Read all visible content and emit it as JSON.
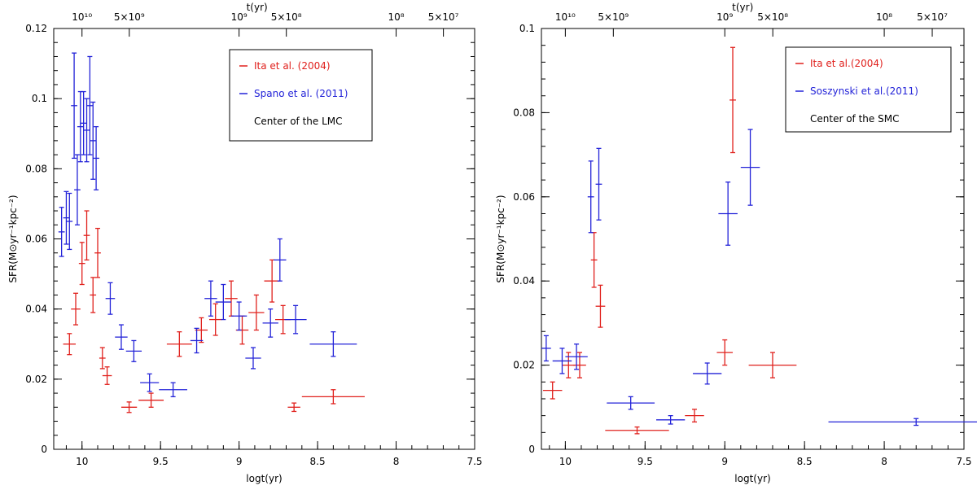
{
  "chart_data": [
    {
      "type": "scatter",
      "xlabel": "logt(yr)",
      "ylabel": "SFR(M⊙yr⁻¹kpc⁻²)",
      "top_axis_label": "t(yr)",
      "top_ticks": [
        {
          "label": "10¹⁰",
          "logt": 10.0
        },
        {
          "label": "5×10⁹",
          "logt": 9.699
        },
        {
          "label": "10⁹",
          "logt": 9.0
        },
        {
          "label": "5×10⁸",
          "logt": 8.699
        },
        {
          "label": "10⁸",
          "logt": 8.0
        },
        {
          "label": "5×10⁷",
          "logt": 7.699
        }
      ],
      "xlim": [
        10.18,
        7.5
      ],
      "ylim": [
        0,
        0.12
      ],
      "x_ticks": [
        10,
        9.5,
        9,
        8.5,
        8,
        7.5
      ],
      "x_tick_labels": [
        "10",
        "9.5",
        "9",
        "8.5",
        "8",
        "7.5"
      ],
      "y_ticks": [
        0,
        0.02,
        0.04,
        0.06,
        0.08,
        0.1,
        0.12
      ],
      "y_tick_labels": [
        "0",
        "0.02",
        "0.04",
        "0.06",
        "0.08",
        "0.1",
        "0.12"
      ],
      "legend_position": "top-right",
      "legend_note": "Center of the LMC",
      "series": [
        {
          "name": "Ita et al. (2004)",
          "color": "#e0201c",
          "points": [
            {
              "x": 10.08,
              "y": 0.03,
              "xerr": 0.04,
              "yerr": 0.003
            },
            {
              "x": 10.04,
              "y": 0.04,
              "xerr": 0.03,
              "yerr": 0.0045
            },
            {
              "x": 10.0,
              "y": 0.053,
              "xerr": 0.02,
              "yerr": 0.006
            },
            {
              "x": 9.97,
              "y": 0.061,
              "xerr": 0.02,
              "yerr": 0.007
            },
            {
              "x": 9.93,
              "y": 0.044,
              "xerr": 0.02,
              "yerr": 0.005
            },
            {
              "x": 9.9,
              "y": 0.056,
              "xerr": 0.02,
              "yerr": 0.007
            },
            {
              "x": 9.87,
              "y": 0.026,
              "xerr": 0.02,
              "yerr": 0.003
            },
            {
              "x": 9.84,
              "y": 0.021,
              "xerr": 0.03,
              "yerr": 0.0025
            },
            {
              "x": 9.7,
              "y": 0.012,
              "xerr": 0.05,
              "yerr": 0.0015
            },
            {
              "x": 9.56,
              "y": 0.014,
              "xerr": 0.08,
              "yerr": 0.002
            },
            {
              "x": 9.38,
              "y": 0.03,
              "xerr": 0.08,
              "yerr": 0.0035
            },
            {
              "x": 9.24,
              "y": 0.034,
              "xerr": 0.04,
              "yerr": 0.0035
            },
            {
              "x": 9.15,
              "y": 0.037,
              "xerr": 0.04,
              "yerr": 0.0045
            },
            {
              "x": 9.05,
              "y": 0.043,
              "xerr": 0.04,
              "yerr": 0.005
            },
            {
              "x": 8.98,
              "y": 0.034,
              "xerr": 0.04,
              "yerr": 0.004
            },
            {
              "x": 8.89,
              "y": 0.039,
              "xerr": 0.05,
              "yerr": 0.005
            },
            {
              "x": 8.79,
              "y": 0.048,
              "xerr": 0.05,
              "yerr": 0.006
            },
            {
              "x": 8.72,
              "y": 0.037,
              "xerr": 0.05,
              "yerr": 0.004
            },
            {
              "x": 8.65,
              "y": 0.012,
              "xerr": 0.04,
              "yerr": 0.0012
            },
            {
              "x": 8.4,
              "y": 0.015,
              "xerr": 0.2,
              "yerr": 0.002
            }
          ]
        },
        {
          "name": "Spano et al. (2011)",
          "color": "#2323d8",
          "points": [
            {
              "x": 10.13,
              "y": 0.062,
              "xerr": 0.02,
              "yerr": 0.007
            },
            {
              "x": 10.1,
              "y": 0.066,
              "xerr": 0.02,
              "yerr": 0.0075
            },
            {
              "x": 10.08,
              "y": 0.065,
              "xerr": 0.02,
              "yerr": 0.008
            },
            {
              "x": 10.05,
              "y": 0.098,
              "xerr": 0.02,
              "yerr": 0.015
            },
            {
              "x": 10.03,
              "y": 0.074,
              "xerr": 0.02,
              "yerr": 0.01
            },
            {
              "x": 10.01,
              "y": 0.092,
              "xerr": 0.02,
              "yerr": 0.01
            },
            {
              "x": 9.99,
              "y": 0.093,
              "xerr": 0.02,
              "yerr": 0.009
            },
            {
              "x": 9.97,
              "y": 0.091,
              "xerr": 0.02,
              "yerr": 0.009
            },
            {
              "x": 9.95,
              "y": 0.098,
              "xerr": 0.02,
              "yerr": 0.014
            },
            {
              "x": 9.93,
              "y": 0.088,
              "xerr": 0.02,
              "yerr": 0.011
            },
            {
              "x": 9.91,
              "y": 0.083,
              "xerr": 0.02,
              "yerr": 0.009
            },
            {
              "x": 9.82,
              "y": 0.043,
              "xerr": 0.03,
              "yerr": 0.0045
            },
            {
              "x": 9.75,
              "y": 0.032,
              "xerr": 0.04,
              "yerr": 0.0035
            },
            {
              "x": 9.67,
              "y": 0.028,
              "xerr": 0.05,
              "yerr": 0.003
            },
            {
              "x": 9.57,
              "y": 0.019,
              "xerr": 0.06,
              "yerr": 0.0025
            },
            {
              "x": 9.42,
              "y": 0.017,
              "xerr": 0.09,
              "yerr": 0.002
            },
            {
              "x": 9.27,
              "y": 0.031,
              "xerr": 0.04,
              "yerr": 0.0035
            },
            {
              "x": 9.18,
              "y": 0.043,
              "xerr": 0.04,
              "yerr": 0.005
            },
            {
              "x": 9.1,
              "y": 0.042,
              "xerr": 0.05,
              "yerr": 0.005
            },
            {
              "x": 9.0,
              "y": 0.038,
              "xerr": 0.05,
              "yerr": 0.004
            },
            {
              "x": 8.91,
              "y": 0.026,
              "xerr": 0.05,
              "yerr": 0.003
            },
            {
              "x": 8.8,
              "y": 0.036,
              "xerr": 0.05,
              "yerr": 0.004
            },
            {
              "x": 8.74,
              "y": 0.054,
              "xerr": 0.04,
              "yerr": 0.006
            },
            {
              "x": 8.64,
              "y": 0.037,
              "xerr": 0.07,
              "yerr": 0.004
            },
            {
              "x": 8.4,
              "y": 0.03,
              "xerr": 0.15,
              "yerr": 0.0035
            }
          ]
        }
      ]
    },
    {
      "type": "scatter",
      "xlabel": "logt(yr)",
      "ylabel": "SFR(M⊙yr⁻¹kpc⁻²)",
      "top_axis_label": "t(yr)",
      "top_ticks": [
        {
          "label": "10¹⁰",
          "logt": 10.0
        },
        {
          "label": "5×10⁹",
          "logt": 9.699
        },
        {
          "label": "10⁹",
          "logt": 9.0
        },
        {
          "label": "5×10⁸",
          "logt": 8.699
        },
        {
          "label": "10⁸",
          "logt": 8.0
        },
        {
          "label": "5×10⁷",
          "logt": 7.699
        }
      ],
      "xlim": [
        10.15,
        7.5
      ],
      "ylim": [
        0,
        0.1
      ],
      "x_ticks": [
        10,
        9.5,
        9,
        8.5,
        8,
        7.5
      ],
      "x_tick_labels": [
        "10",
        "9.5",
        "9",
        "8.5",
        "8",
        "7.5"
      ],
      "y_ticks": [
        0,
        0.02,
        0.04,
        0.06,
        0.08,
        0.1
      ],
      "y_tick_labels": [
        "0",
        "0.02",
        "0.04",
        "0.06",
        "0.08",
        "0.1"
      ],
      "legend_position": "top-right",
      "legend_note": "Center of the SMC",
      "series": [
        {
          "name": "Ita et al.(2004)",
          "color": "#e0201c",
          "points": [
            {
              "x": 10.08,
              "y": 0.014,
              "xerr": 0.06,
              "yerr": 0.002
            },
            {
              "x": 9.98,
              "y": 0.02,
              "xerr": 0.04,
              "yerr": 0.003
            },
            {
              "x": 9.91,
              "y": 0.02,
              "xerr": 0.04,
              "yerr": 0.003
            },
            {
              "x": 9.82,
              "y": 0.045,
              "xerr": 0.02,
              "yerr": 0.0065
            },
            {
              "x": 9.78,
              "y": 0.034,
              "xerr": 0.03,
              "yerr": 0.005
            },
            {
              "x": 9.55,
              "y": 0.0045,
              "xerr": 0.2,
              "yerr": 0.0008
            },
            {
              "x": 9.19,
              "y": 0.008,
              "xerr": 0.06,
              "yerr": 0.0015
            },
            {
              "x": 9.0,
              "y": 0.023,
              "xerr": 0.05,
              "yerr": 0.003
            },
            {
              "x": 8.95,
              "y": 0.083,
              "xerr": 0.02,
              "yerr": 0.0125
            },
            {
              "x": 8.7,
              "y": 0.02,
              "xerr": 0.15,
              "yerr": 0.003
            }
          ]
        },
        {
          "name": "Soszynski et al.(2011)",
          "color": "#2323d8",
          "points": [
            {
              "x": 10.12,
              "y": 0.024,
              "xerr": 0.03,
              "yerr": 0.003
            },
            {
              "x": 10.02,
              "y": 0.021,
              "xerr": 0.06,
              "yerr": 0.003
            },
            {
              "x": 9.93,
              "y": 0.022,
              "xerr": 0.07,
              "yerr": 0.003
            },
            {
              "x": 9.84,
              "y": 0.06,
              "xerr": 0.02,
              "yerr": 0.0085
            },
            {
              "x": 9.79,
              "y": 0.063,
              "xerr": 0.02,
              "yerr": 0.0085
            },
            {
              "x": 9.59,
              "y": 0.011,
              "xerr": 0.15,
              "yerr": 0.0015
            },
            {
              "x": 9.34,
              "y": 0.007,
              "xerr": 0.09,
              "yerr": 0.001
            },
            {
              "x": 9.11,
              "y": 0.018,
              "xerr": 0.09,
              "yerr": 0.0025
            },
            {
              "x": 8.98,
              "y": 0.056,
              "xerr": 0.06,
              "yerr": 0.0075
            },
            {
              "x": 8.84,
              "y": 0.067,
              "xerr": 0.06,
              "yerr": 0.009
            },
            {
              "x": 7.8,
              "y": 0.0065,
              "xerr": 0.55,
              "yerr": 0.0008
            }
          ]
        }
      ]
    }
  ]
}
